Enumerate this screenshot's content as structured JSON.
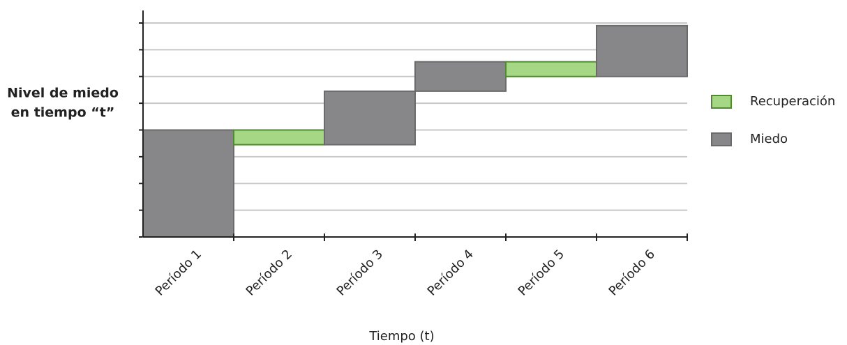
{
  "chart_data": {
    "type": "waterfall",
    "ylabel": [
      "Nivel de miedo",
      "en tiempo “t”"
    ],
    "xlabel": "Tiempo (t)",
    "categories": [
      "Período 1",
      "Período 2",
      "Período 3",
      "Período 4",
      "Período 5",
      "Período 6"
    ],
    "series": [
      {
        "name": "Recuperación",
        "color": "#a6d785",
        "values": [
          null,
          -0.55,
          null,
          null,
          -0.55,
          null
        ]
      },
      {
        "name": "Miedo",
        "color": "#87878a",
        "values": [
          4,
          null,
          2,
          1.1,
          null,
          1.9
        ]
      }
    ],
    "ylim": [
      0,
      8
    ],
    "yticks": [
      0,
      1,
      2,
      3,
      4,
      5,
      6,
      7,
      8
    ],
    "grid": true,
    "legend": "right"
  }
}
